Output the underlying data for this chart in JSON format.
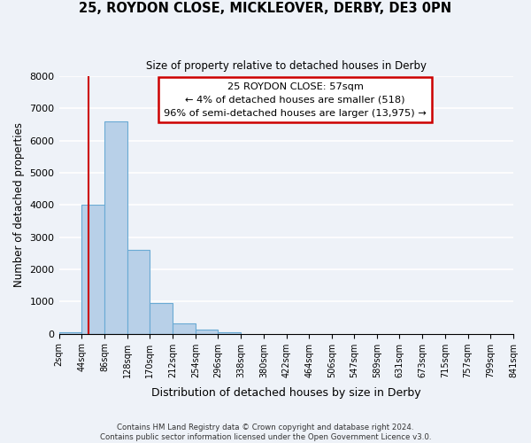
{
  "title": "25, ROYDON CLOSE, MICKLEOVER, DERBY, DE3 0PN",
  "subtitle": "Size of property relative to detached houses in Derby",
  "xlabel": "Distribution of detached houses by size in Derby",
  "ylabel": "Number of detached properties",
  "bin_labels": [
    "2sqm",
    "44sqm",
    "86sqm",
    "128sqm",
    "170sqm",
    "212sqm",
    "254sqm",
    "296sqm",
    "338sqm",
    "380sqm",
    "422sqm",
    "464sqm",
    "506sqm",
    "547sqm",
    "589sqm",
    "631sqm",
    "673sqm",
    "715sqm",
    "757sqm",
    "799sqm",
    "841sqm"
  ],
  "bar_values": [
    50,
    4000,
    6600,
    2600,
    950,
    320,
    120,
    50,
    0,
    0,
    0,
    0,
    0,
    0,
    0,
    0,
    0,
    0,
    0,
    0
  ],
  "bar_color": "#b8d0e8",
  "bar_edge_color": "#6aaad4",
  "property_line_x": 57,
  "property_line_color": "#cc0000",
  "annotation_line1": "25 ROYDON CLOSE: 57sqm",
  "annotation_line2": "← 4% of detached houses are smaller (518)",
  "annotation_line3": "96% of semi-detached houses are larger (13,975) →",
  "annotation_box_color": "#ffffff",
  "annotation_box_edge_color": "#cc0000",
  "ylim": [
    0,
    8000
  ],
  "yticks": [
    0,
    1000,
    2000,
    3000,
    4000,
    5000,
    6000,
    7000,
    8000
  ],
  "footer_text": "Contains HM Land Registry data © Crown copyright and database right 2024.\nContains public sector information licensed under the Open Government Licence v3.0.",
  "background_color": "#eef2f8",
  "grid_color": "#ffffff"
}
